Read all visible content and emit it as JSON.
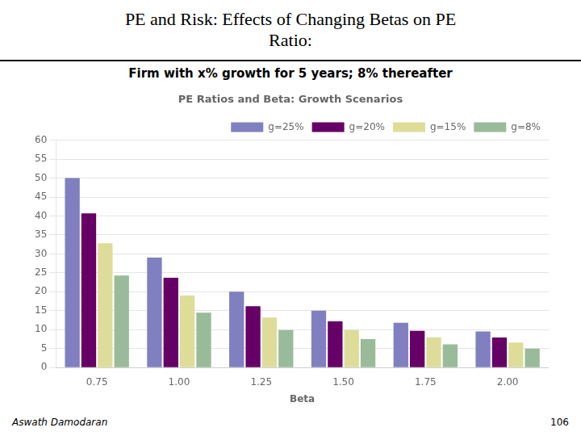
{
  "chart_data": {
    "type": "bar",
    "title": "PE Ratios and Beta: Growth Scenarios",
    "subtitle": "Firm with x% growth for 5 years; 8% thereafter",
    "xlabel": "Beta",
    "annotations": [
      "PE and Risk: Effects of Changing Betas on PE",
      "Ratio:",
      "Aswath Damodaran",
      "106"
    ],
    "categories": [
      "0.75",
      "1.00",
      "1.25",
      "1.50",
      "1.75",
      "2.00"
    ],
    "series": [
      {
        "name": "g=25%",
        "color": "#8080c0",
        "values": [
          50.0,
          29.0,
          20.0,
          15.0,
          11.8,
          9.5
        ]
      },
      {
        "name": "g=20%",
        "color": "#660066",
        "values": [
          40.7,
          23.7,
          16.2,
          12.2,
          9.7,
          7.9
        ]
      },
      {
        "name": "g=15%",
        "color": "#dddd99",
        "values": [
          32.8,
          19.0,
          13.2,
          9.9,
          8.0,
          6.6
        ]
      },
      {
        "name": "g=8%",
        "color": "#99bb99",
        "values": [
          24.3,
          14.5,
          9.9,
          7.5,
          6.1,
          5.0
        ]
      }
    ],
    "ylim": [
      0,
      60
    ],
    "yticks": [
      0,
      5,
      10,
      15,
      20,
      25,
      30,
      35,
      40,
      45,
      50,
      55,
      60
    ],
    "grid": true,
    "legend": "upper right"
  }
}
